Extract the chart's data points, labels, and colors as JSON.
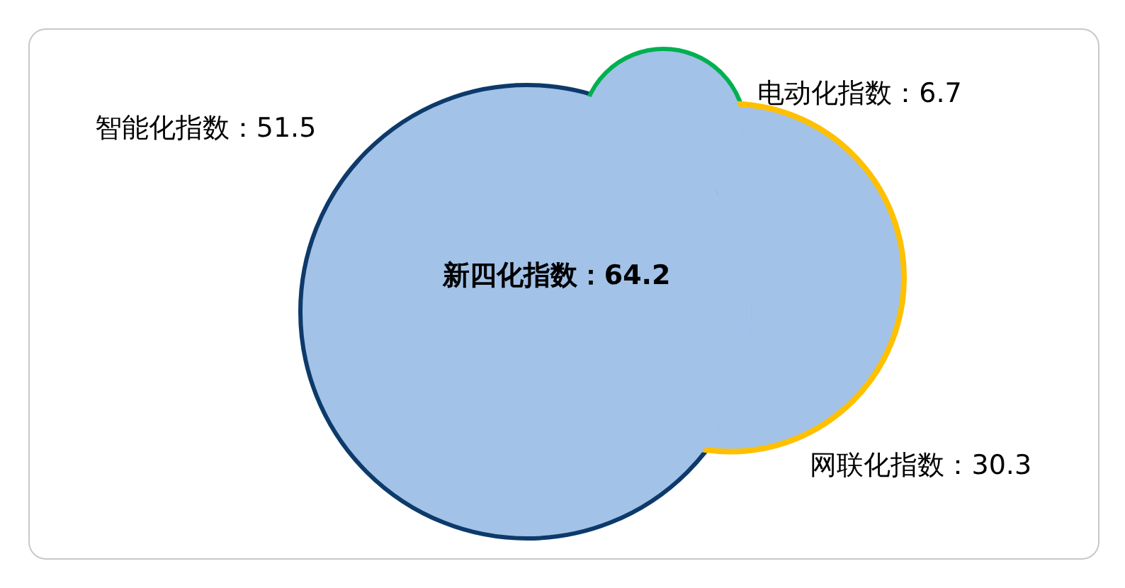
{
  "chart_data": {
    "type": "other",
    "categories": [
      "智能化指数",
      "电动化指数",
      "网联化指数"
    ],
    "values": [
      51.5,
      6.7,
      30.3
    ],
    "value_labels": [
      "：51.5",
      "：6.7",
      "：30.3"
    ],
    "color": "#a2c2e8",
    "colors": [
      "#0d3a6b",
      "#00b050",
      "#ffc000"
    ],
    "annotations": [
      "新四化指数：64.2"
    ]
  }
}
